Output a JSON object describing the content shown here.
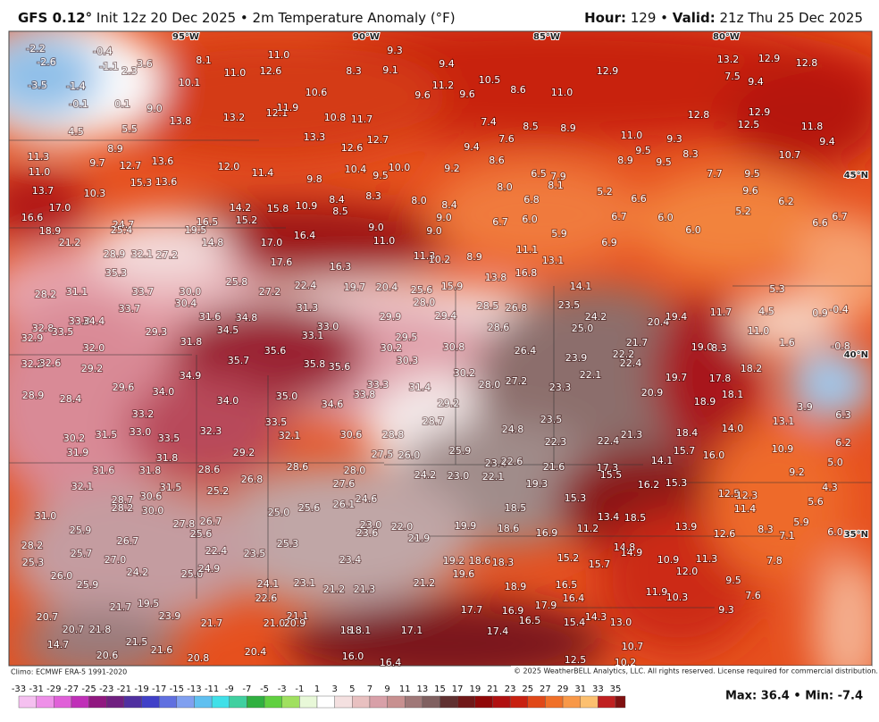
{
  "header": {
    "model": "GFS 0.12°",
    "init": " Init 12z 20 Dec 2025 • 2m Temperature Anomaly (°F)",
    "hour_label": "Hour:",
    "hour": " 129 • ",
    "valid_label": "Valid:",
    "valid": " 21z Thu 25 Dec 2025"
  },
  "map": {
    "lon_labels": [
      "95°W",
      "90°W",
      "85°W",
      "80°W"
    ],
    "lat_labels": [
      "45°N",
      "40°N",
      "35°N"
    ],
    "values": [
      "-2.2",
      "-2.6",
      "-0.4",
      "-1.1",
      "2.3",
      "3.6",
      "-3.5",
      "-1.4",
      "-0.1",
      "0.1",
      "4.5",
      "8.1",
      "11.0",
      "12.6",
      "11.0",
      "10.1",
      "9.0",
      "13.8",
      "13.2",
      "12.1",
      "11.9",
      "13.3",
      "10.8",
      "11.7",
      "12.7",
      "12.6",
      "10.6",
      "8.3",
      "9.1",
      "9.3",
      "9.4",
      "11.2",
      "9.6",
      "9.6",
      "10.5",
      "8.6",
      "11.0",
      "12.9",
      "13.2",
      "12.9",
      "12.8",
      "7.5",
      "9.4",
      "12.8",
      "12.9",
      "12.5",
      "11.8",
      "9.4",
      "10.7",
      "9.3",
      "8.3",
      "9.5",
      "8.9",
      "11.0",
      "9.5",
      "7.7",
      "9.5",
      "9.6",
      "6.2",
      "5.2",
      "6.6",
      "6.7",
      "6.0",
      "6.0",
      "6.6",
      "6.7",
      "5.2",
      "6.9",
      "5.9",
      "6.0",
      "6.8",
      "6.7",
      "8.0",
      "7.9",
      "8.1",
      "6.5",
      "8.6",
      "7.6",
      "8.5",
      "7.4",
      "8.9",
      "9.4",
      "9.2",
      "8.4",
      "9.0",
      "9.0",
      "8.0",
      "10.0",
      "9.5",
      "10.4",
      "8.3",
      "8.4",
      "8.5",
      "9.8",
      "10.9",
      "9.0",
      "11.0",
      "11.3",
      "10.2",
      "8.9",
      "11.1",
      "13.1",
      "16.8",
      "13.8",
      "14.1",
      "11.3",
      "9.7",
      "12.7",
      "13.6",
      "11.0",
      "8.9",
      "5.5",
      "15.3",
      "13.6",
      "12.0",
      "11.4",
      "13.7",
      "10.3",
      "17.0",
      "14.2",
      "15.2",
      "15.8",
      "16.5",
      "16.6",
      "18.9",
      "21.2",
      "24.7",
      "25.4",
      "19.5",
      "14.8",
      "17.0",
      "16.4",
      "17.6",
      "16.3",
      "15.9",
      "19.7",
      "20.4",
      "25.6",
      "28.0",
      "22.4",
      "27.2",
      "25.8",
      "28.2",
      "31.1",
      "35.3",
      "32.1",
      "27.2",
      "28.9",
      "33.7",
      "30.0",
      "30.4",
      "33.7",
      "31.6",
      "34.8",
      "31.3",
      "29.9",
      "29.4",
      "28.5",
      "26.8",
      "23.5",
      "24.2",
      "25.0",
      "32.8",
      "33.5",
      "33.8",
      "34.4",
      "32.9",
      "34.5",
      "29.3",
      "31.8",
      "33.0",
      "33.1",
      "29.5",
      "30.2",
      "30.8",
      "28.6",
      "26.4",
      "21.7",
      "22.2",
      "22.4",
      "20.4",
      "19.4",
      "19.0",
      "8.3",
      "11.0",
      "11.7",
      "4.5",
      "5.3",
      "0.9",
      "-0.4",
      "1.6",
      "-0.8",
      "18.2",
      "17.8",
      "18.1",
      "19.7",
      "20.9",
      "18.9",
      "22.1",
      "23.9",
      "23.3",
      "32.0",
      "32.2",
      "32.6",
      "29.2",
      "35.7",
      "35.6",
      "35.8",
      "35.6",
      "34.9",
      "30.3",
      "33.3",
      "31.4",
      "30.2",
      "28.0",
      "27.2",
      "33.8",
      "29.6",
      "34.0",
      "34.0",
      "35.0",
      "34.6",
      "28.9",
      "28.4",
      "33.2",
      "33.5",
      "32.1",
      "30.6",
      "28.8",
      "28.7",
      "29.2",
      "24.8",
      "23.5",
      "22.3",
      "22.4",
      "21.3",
      "18.4",
      "15.7",
      "16.0",
      "14.0",
      "13.1",
      "10.9",
      "9.2",
      "5.0",
      "6.2",
      "6.3",
      "3.9",
      "33.0",
      "33.5",
      "32.3",
      "31.5",
      "30.2",
      "31.9",
      "31.8",
      "31.8",
      "31.6",
      "29.2",
      "28.6",
      "28.0",
      "27.5",
      "26.0",
      "25.9",
      "23.4",
      "22.6",
      "21.6",
      "17.3",
      "15.5",
      "14.1",
      "16.2",
      "15.3",
      "32.1",
      "31.5",
      "30.6",
      "28.7",
      "28.2",
      "30.0",
      "28.6",
      "26.8",
      "27.6",
      "25.2",
      "24.2",
      "23.0",
      "22.1",
      "19.3",
      "15.3",
      "12.5",
      "12.3",
      "11.4",
      "5.6",
      "4.3",
      "31.0",
      "25.0",
      "25.6",
      "26.1",
      "24.6",
      "18.5",
      "13.4",
      "18.5",
      "27.8",
      "26.7",
      "25.6",
      "23.0",
      "23.6",
      "22.0",
      "21.9",
      "19.9",
      "18.6",
      "16.9",
      "11.2",
      "13.9",
      "12.6",
      "8.3",
      "7.1",
      "5.9",
      "6.0",
      "28.2",
      "25.9",
      "26.7",
      "22.4",
      "25.3",
      "23.5",
      "14.8",
      "14.9",
      "15.2",
      "15.7",
      "11.3",
      "7.8",
      "25.3",
      "25.7",
      "27.0",
      "24.2",
      "26.0",
      "25.0",
      "24.9",
      "23.4",
      "19.2",
      "18.6",
      "18.3",
      "12.0",
      "10.9",
      "9.5",
      "25.9",
      "24.1",
      "23.1",
      "21.2",
      "21.3",
      "21.2",
      "19.6",
      "18.9",
      "16.5",
      "16.4",
      "11.9",
      "10.3",
      "7.6",
      "22.6",
      "21.7",
      "19.5",
      "23.9",
      "21.7",
      "21.1",
      "21.0",
      "20.9",
      "18.3",
      "18.1",
      "17.7",
      "16.9",
      "17.9",
      "16.5",
      "15.4",
      "14.3",
      "13.0",
      "9.3",
      "20.7",
      "20.7",
      "21.8",
      "21.5",
      "21.6",
      "20.8",
      "20.4",
      "17.1",
      "17.4",
      "16.0",
      "16.4",
      "12.5",
      "10.7",
      "10.2",
      "14.7",
      "20.6"
    ]
  },
  "footer": {
    "climo": "Climo: ECMWF ERA-5 1991-2020",
    "copyright": "© 2025 WeatherBELL Analytics, LLC. All rights reserved. License required for commercial distribution.",
    "colorbar_ticks": [
      -33,
      -31,
      -29,
      -27,
      -25,
      -23,
      -21,
      -19,
      -17,
      -15,
      -13,
      -11,
      -9,
      -7,
      -5,
      -3,
      -1,
      1,
      3,
      5,
      7,
      9,
      11,
      13,
      15,
      17,
      19,
      21,
      23,
      25,
      27,
      29,
      31,
      33,
      35
    ],
    "stats": "Max: 36.4 • Min: -7.4"
  }
}
